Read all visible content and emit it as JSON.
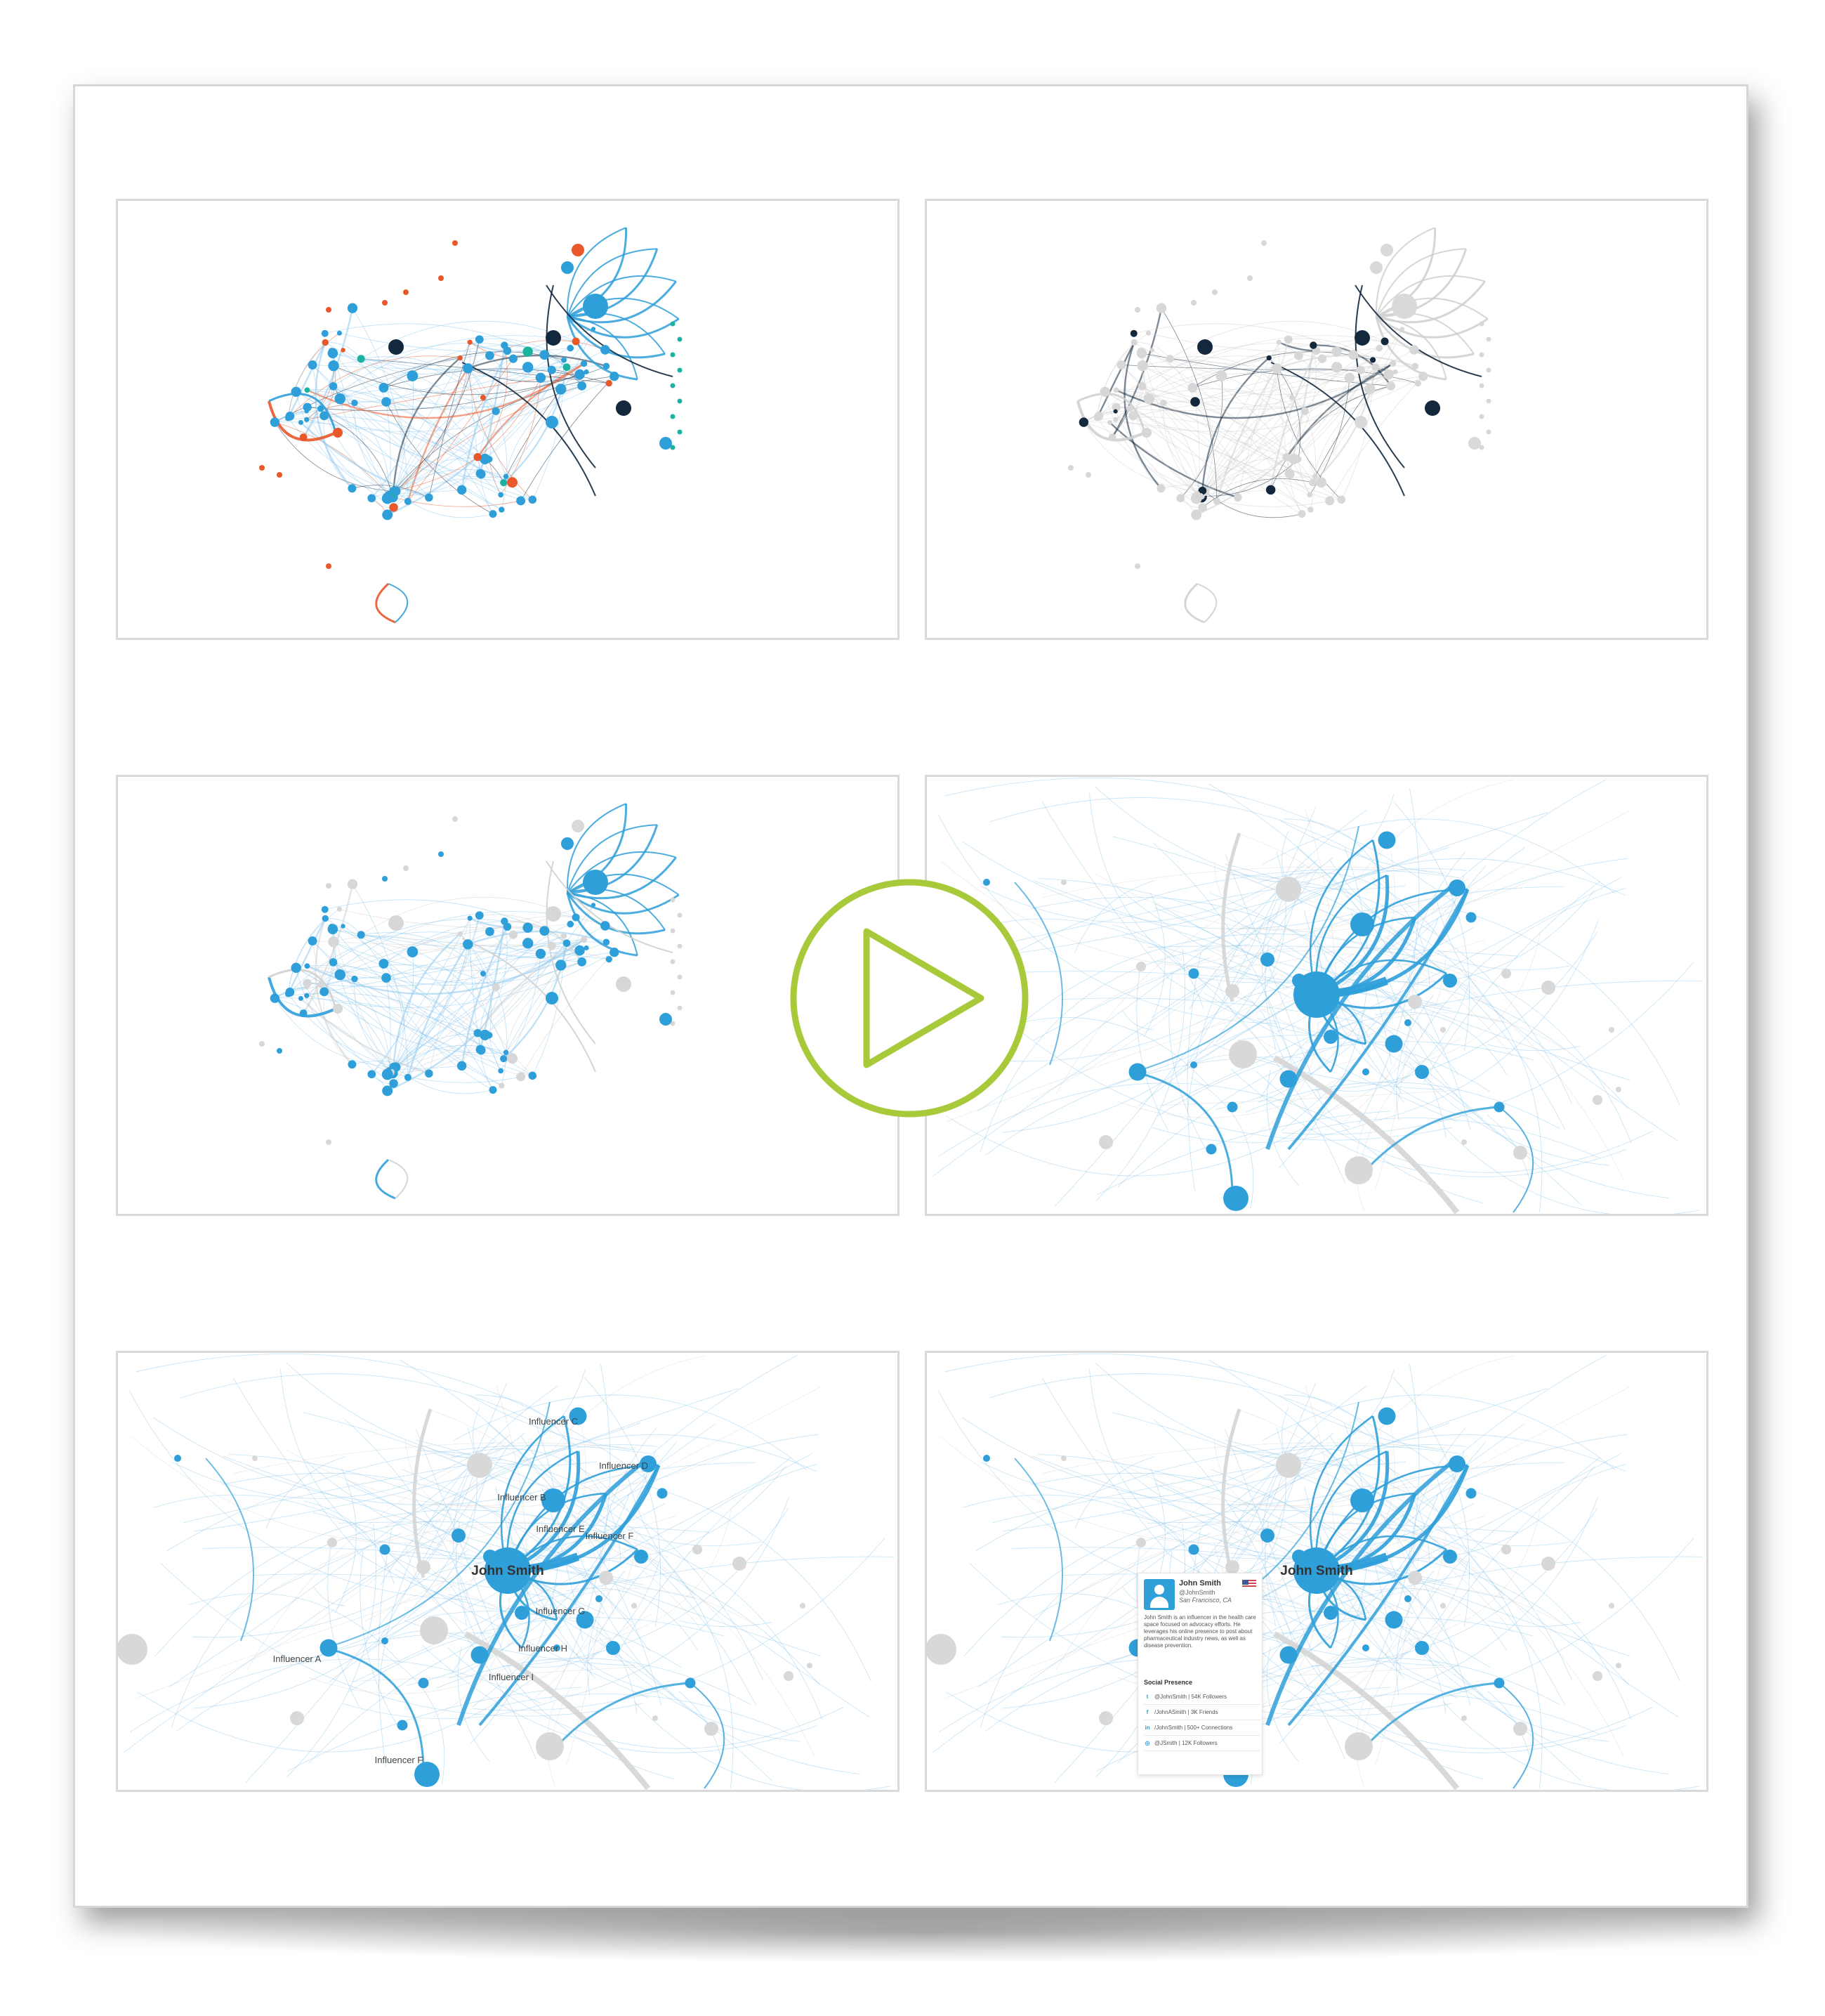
{
  "colors": {
    "blue": "#2e9fd9",
    "light_blue": "#8cc8ee",
    "navy": "#13283d",
    "orange": "#e8582a",
    "teal": "#1bb3a0",
    "gray": "#d7d7d7",
    "green": "#a8c93a"
  },
  "panels": [
    {
      "id": "panel-1",
      "name": "network-panel-communities"
    },
    {
      "id": "panel-2",
      "name": "network-panel-navy-highlight"
    },
    {
      "id": "panel-3",
      "name": "network-panel-blue-highlight"
    },
    {
      "id": "panel-4",
      "name": "network-panel-zoomed"
    },
    {
      "id": "panel-5",
      "name": "network-panel-labeled"
    },
    {
      "id": "panel-6",
      "name": "network-panel-profile"
    }
  ],
  "labels": {
    "center": "John Smith",
    "influencers": [
      "Influencer C",
      "Influencer D",
      "Influencer B",
      "Influencer E",
      "Influencer F",
      "Influencer G",
      "Influencer A",
      "Influencer H",
      "Influencer I",
      "Influencer F"
    ]
  },
  "profile": {
    "name": "John Smith",
    "handle": "@JohnSmith",
    "location": "San Francisco, CA",
    "bio": "John Smith is an influencer in the health care space focused on advocacy efforts. He leverages his online presence to post about pharmaceutical industry news, as well as disease prevention.",
    "social_title": "Social Presence",
    "social": [
      {
        "icon": "twitter-icon",
        "glyph": "t",
        "text": "@JohnSmith  |  54K Followers"
      },
      {
        "icon": "facebook-icon",
        "glyph": "f",
        "text": "/JohnASmith  |  3K Friends"
      },
      {
        "icon": "linkedin-icon",
        "glyph": "in",
        "text": "/JohnSmith  |  500+ Connections"
      },
      {
        "icon": "instagram-icon",
        "glyph": "◎",
        "text": "@JSmith  |  12K Followers"
      }
    ]
  }
}
